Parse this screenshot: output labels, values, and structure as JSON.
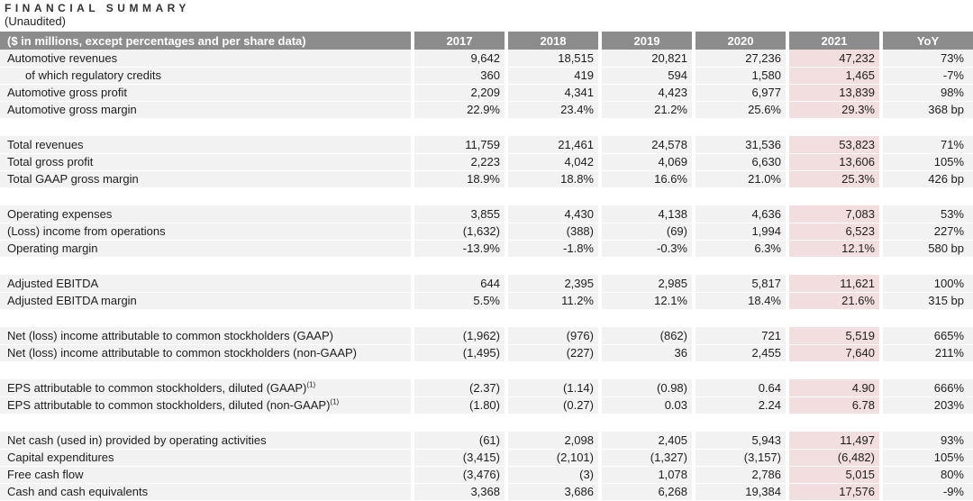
{
  "title": "FINANCIAL SUMMARY",
  "subtitle": "(Unaudited)",
  "colors": {
    "header_bg": "#8c8c8c",
    "header_text": "#ffffff",
    "row_bg": "#f2f2f2",
    "highlight_bg": "#f2dede",
    "text": "#1d1d1d"
  },
  "table": {
    "header": {
      "label": "($ in millions, except percentages and per share data)",
      "columns": [
        "2017",
        "2018",
        "2019",
        "2020",
        "2021",
        "YoY"
      ]
    },
    "highlight_column": "2021",
    "sections": [
      {
        "rows": [
          {
            "label": "Automotive revenues",
            "values": [
              "9,642",
              "18,515",
              "20,821",
              "27,236",
              "47,232",
              "73%"
            ]
          },
          {
            "label": "of which regulatory credits",
            "indent": true,
            "values": [
              "360",
              "419",
              "594",
              "1,580",
              "1,465",
              "-7%"
            ]
          },
          {
            "label": "Automotive gross profit",
            "values": [
              "2,209",
              "4,341",
              "4,423",
              "6,977",
              "13,839",
              "98%"
            ]
          },
          {
            "label": "Automotive gross margin",
            "values": [
              "22.9%",
              "23.4%",
              "21.2%",
              "25.6%",
              "29.3%",
              "368 bp"
            ]
          }
        ]
      },
      {
        "rows": [
          {
            "label": "Total revenues",
            "values": [
              "11,759",
              "21,461",
              "24,578",
              "31,536",
              "53,823",
              "71%"
            ]
          },
          {
            "label": "Total gross profit",
            "values": [
              "2,223",
              "4,042",
              "4,069",
              "6,630",
              "13,606",
              "105%"
            ]
          },
          {
            "label": "Total GAAP gross margin",
            "values": [
              "18.9%",
              "18.8%",
              "16.6%",
              "21.0%",
              "25.3%",
              "426 bp"
            ]
          }
        ]
      },
      {
        "rows": [
          {
            "label": "Operating expenses",
            "values": [
              "3,855",
              "4,430",
              "4,138",
              "4,636",
              "7,083",
              "53%"
            ]
          },
          {
            "label": "(Loss) income from operations",
            "values": [
              "(1,632)",
              "(388)",
              "(69)",
              "1,994",
              "6,523",
              "227%"
            ]
          },
          {
            "label": "Operating margin",
            "values": [
              "-13.9%",
              "-1.8%",
              "-0.3%",
              "6.3%",
              "12.1%",
              "580 bp"
            ]
          }
        ]
      },
      {
        "rows": [
          {
            "label": "Adjusted EBITDA",
            "values": [
              "644",
              "2,395",
              "2,985",
              "5,817",
              "11,621",
              "100%"
            ]
          },
          {
            "label": "Adjusted EBITDA margin",
            "values": [
              "5.5%",
              "11.2%",
              "12.1%",
              "18.4%",
              "21.6%",
              "315 bp"
            ]
          }
        ]
      },
      {
        "rows": [
          {
            "label": "Net (loss) income attributable to common stockholders (GAAP)",
            "values": [
              "(1,962)",
              "(976)",
              "(862)",
              "721",
              "5,519",
              "665%"
            ]
          },
          {
            "label": "Net (loss) income attributable to common stockholders (non-GAAP)",
            "values": [
              "(1,495)",
              "(227)",
              "36",
              "2,455",
              "7,640",
              "211%"
            ]
          }
        ]
      },
      {
        "rows": [
          {
            "label": "EPS attributable to common stockholders, diluted (GAAP)",
            "sup": "(1)",
            "values": [
              "(2.37)",
              "(1.14)",
              "(0.98)",
              "0.64",
              "4.90",
              "666%"
            ]
          },
          {
            "label": "EPS attributable to common stockholders, diluted (non-GAAP)",
            "sup": "(1)",
            "values": [
              "(1.80)",
              "(0.27)",
              "0.03",
              "2.24",
              "6.78",
              "203%"
            ]
          }
        ]
      },
      {
        "rows": [
          {
            "label": "Net cash (used in) provided by operating activities",
            "values": [
              "(61)",
              "2,098",
              "2,405",
              "5,943",
              "11,497",
              "93%"
            ]
          },
          {
            "label": "Capital expenditures",
            "values": [
              "(3,415)",
              "(2,101)",
              "(1,327)",
              "(3,157)",
              "(6,482)",
              "105%"
            ]
          },
          {
            "label": "Free cash flow",
            "values": [
              "(3,476)",
              "(3)",
              "1,078",
              "2,786",
              "5,015",
              "80%"
            ]
          },
          {
            "label": "Cash and cash equivalents",
            "values": [
              "3,368",
              "3,686",
              "6,268",
              "19,384",
              "17,576",
              "-9%"
            ]
          }
        ]
      }
    ]
  }
}
